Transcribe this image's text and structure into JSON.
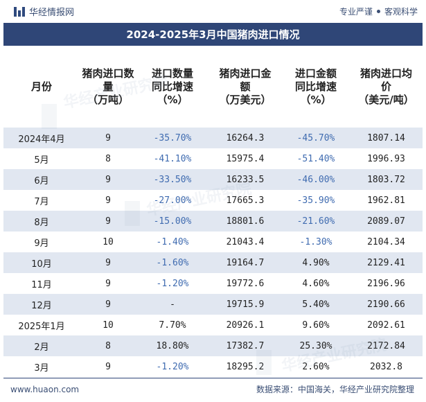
{
  "top": {
    "brand": "华经情报网",
    "tag1": "专业严谨",
    "tag2": "客观科学"
  },
  "title": "2024-2025年3月中国猪肉进口情况",
  "headers": [
    "月份",
    "猪肉进口数\n量\n（万吨）",
    "进口数量\n同比增速\n（%）",
    "猪肉进口金\n额\n（万美元）",
    "进口金额\n同比增速\n（%）",
    "猪肉进口均\n价\n（美元/吨）"
  ],
  "rows": [
    [
      "2024年4月",
      "9",
      "-35.70%",
      "16264.3",
      "-45.70%",
      "1807.14"
    ],
    [
      "5月",
      "8",
      "-41.10%",
      "15975.4",
      "-51.40%",
      "1996.93"
    ],
    [
      "6月",
      "9",
      "-33.50%",
      "16233.5",
      "-46.00%",
      "1803.72"
    ],
    [
      "7月",
      "9",
      "-27.00%",
      "17665.3",
      "-35.90%",
      "1962.81"
    ],
    [
      "8月",
      "9",
      "-15.00%",
      "18801.6",
      "-21.60%",
      "2089.07"
    ],
    [
      "9月",
      "10",
      "-1.40%",
      "21043.4",
      "-1.30%",
      "2104.34"
    ],
    [
      "10月",
      "9",
      "-1.60%",
      "19164.7",
      "4.90%",
      "2129.41"
    ],
    [
      "11月",
      "9",
      "-1.20%",
      "19772.6",
      "4.60%",
      "2196.96"
    ],
    [
      "12月",
      "9",
      "-",
      "19715.9",
      "5.40%",
      "2190.66"
    ],
    [
      "2025年1月",
      "10",
      "7.70%",
      "20926.1",
      "9.60%",
      "2092.61"
    ],
    [
      "2月",
      "8",
      "18.80%",
      "17382.7",
      "25.30%",
      "2172.84"
    ],
    [
      "3月",
      "9",
      "-1.20%",
      "18295.2",
      "2.60%",
      "2032.8"
    ]
  ],
  "footer": {
    "left": "www.huaon.com",
    "right": "数据来源：中国海关，华经产业研究院整理"
  },
  "watermark": "华经产业研究院",
  "colors": {
    "title_bg": "#2f4677",
    "stripe": "#e1e7f1",
    "negative": "#3f6bb0"
  }
}
